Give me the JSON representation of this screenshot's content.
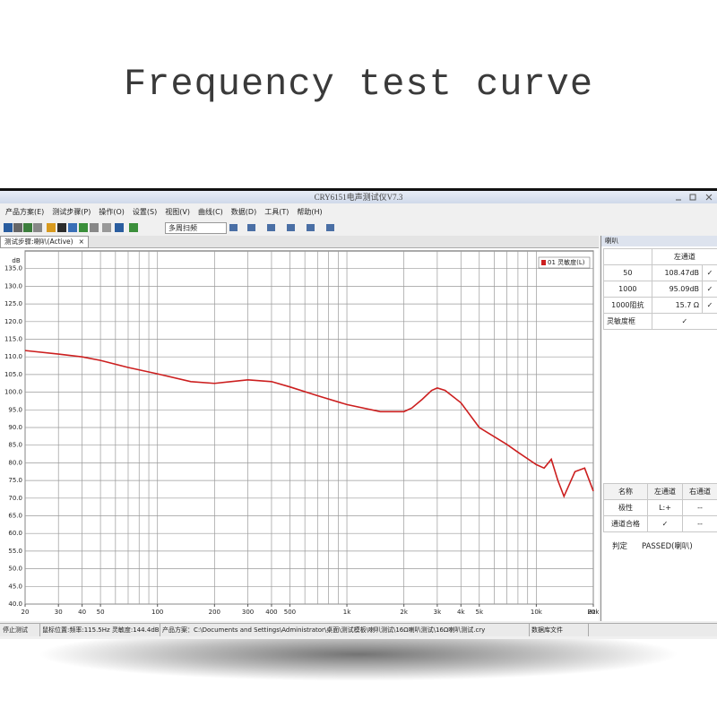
{
  "title": "Frequency test curve",
  "window": {
    "title": "CRY6151电声测试仪V7.3",
    "menu": [
      "产品方案(E)",
      "测试步骤(P)",
      "操作(O)",
      "设置(S)",
      "视图(V)",
      "曲线(C)",
      "数据(D)",
      "工具(T)",
      "帮助(H)"
    ],
    "sweep_mode": "多周扫频",
    "tab": "测试步骤:喇叭(Active)",
    "tab_close": "×"
  },
  "chart_data": {
    "type": "line",
    "y_label": "dB",
    "x_unit": "Hz",
    "log_x": true,
    "grid": true,
    "xlim": [
      20,
      20000
    ],
    "ylim": [
      40,
      140
    ],
    "xticks": [
      20,
      30,
      40,
      50,
      100,
      200,
      300,
      400,
      500,
      {
        "value": 1000,
        "label": "1k"
      },
      {
        "value": 2000,
        "label": "2k"
      },
      {
        "value": 3000,
        "label": "3k"
      },
      {
        "value": 4000,
        "label": "4k"
      },
      {
        "value": 5000,
        "label": "5k"
      },
      {
        "value": 10000,
        "label": "10k"
      },
      {
        "value": 20000,
        "label": "20k"
      }
    ],
    "xgrid": [
      20,
      30,
      40,
      50,
      60,
      70,
      80,
      90,
      100,
      200,
      300,
      400,
      500,
      600,
      700,
      800,
      900,
      1000,
      2000,
      3000,
      4000,
      5000,
      6000,
      7000,
      8000,
      9000,
      10000,
      20000
    ],
    "yticks": [
      {
        "value": 40,
        "label": "40.0"
      },
      {
        "value": 45,
        "label": "45.0"
      },
      {
        "value": 50,
        "label": "50.0"
      },
      {
        "value": 55,
        "label": "55.0"
      },
      {
        "value": 60,
        "label": "60.0"
      },
      {
        "value": 65,
        "label": "65.0"
      },
      {
        "value": 70,
        "label": "70.0"
      },
      {
        "value": 75,
        "label": "75.0"
      },
      {
        "value": 80,
        "label": "80.0"
      },
      {
        "value": 85,
        "label": "85.0"
      },
      {
        "value": 90,
        "label": "90.0"
      },
      {
        "value": 95,
        "label": "95.0"
      },
      {
        "value": 100,
        "label": "100.0"
      },
      {
        "value": 105,
        "label": "105.0"
      },
      {
        "value": 110,
        "label": "110.0"
      },
      {
        "value": 115,
        "label": "115.0"
      },
      {
        "value": 120,
        "label": "120.0"
      },
      {
        "value": 125,
        "label": "125.0"
      },
      {
        "value": 130,
        "label": "130.0"
      },
      {
        "value": 135,
        "label": "135.0"
      }
    ],
    "x": [
      20,
      30,
      40,
      50,
      70,
      100,
      150,
      200,
      300,
      400,
      500,
      700,
      1000,
      1500,
      2000,
      2200,
      2500,
      2800,
      3000,
      3300,
      4000,
      5000,
      7000,
      8000,
      10000,
      11000,
      12000,
      13000,
      14000,
      16000,
      18000,
      20000
    ],
    "series": [
      {
        "name": "01 灵敏度(L)",
        "color": "#cc1f1f",
        "values": [
          111.8,
          110.8,
          110,
          109,
          107,
          105.2,
          103,
          102.5,
          103.5,
          103,
          101.5,
          99,
          96.5,
          94.5,
          94.5,
          95.5,
          98,
          100.5,
          101.2,
          100.5,
          97,
          90,
          85.2,
          83,
          79.5,
          78.5,
          81,
          75,
          70.5,
          77.5,
          78.5,
          72
        ]
      }
    ]
  },
  "panel": {
    "title": "喇叭",
    "results": {
      "header": "左通道",
      "rows": [
        [
          "50",
          "108.47dB",
          "✓"
        ],
        [
          "1000",
          "95.09dB",
          "✓"
        ],
        [
          "1000阻抗",
          "15.7 Ω",
          "✓"
        ],
        [
          "灵敏度框",
          "✓"
        ]
      ]
    },
    "summary": {
      "header": [
        "名称",
        "左通道",
        "右通道"
      ],
      "rows": [
        [
          "极性",
          "L:+",
          "--"
        ],
        [
          "通道合格",
          "✓",
          "--"
        ]
      ],
      "verdict_label": "判定",
      "verdict": "PASSED(喇叭)"
    }
  },
  "status_bar": [
    "停止测试",
    "鼠标位置:频率:115.5Hz 灵敏度:144.4dB",
    "产品方案：C:\\Documents and Settings\\Administrator\\桌面\\测试模板\\喇叭测试\\16Ω喇叭测试\\16Ω喇叭测试.cry",
    "数据库文件"
  ]
}
